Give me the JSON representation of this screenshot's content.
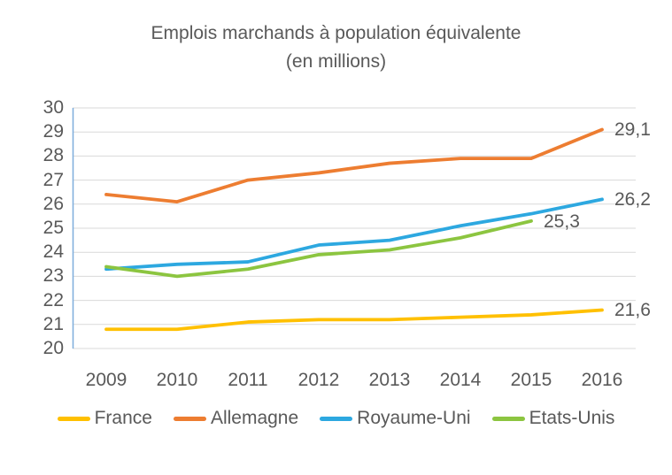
{
  "title": {
    "line1": "Emplois marchands à population équivalente",
    "line2": "(en millions)"
  },
  "chart_data": {
    "type": "line",
    "title": "Emplois marchands à population équivalente (en millions)",
    "categories": [
      "2009",
      "2010",
      "2011",
      "2012",
      "2013",
      "2014",
      "2015",
      "2016"
    ],
    "y_ticks": [
      30,
      29,
      28,
      27,
      26,
      25,
      24,
      23,
      22,
      21,
      20
    ],
    "ylim": [
      20,
      30
    ],
    "xlabel": "",
    "ylabel": "",
    "grid": "horizontal",
    "legend_position": "bottom",
    "colors": {
      "text": "#595959",
      "grid": "#D9D9D9",
      "axis_line": "#7EADDC"
    },
    "series": [
      {
        "name": "France",
        "color": "#FFC000",
        "values": [
          20.8,
          20.8,
          21.1,
          21.2,
          21.2,
          21.3,
          21.4,
          21.6
        ],
        "end_label": "21,6"
      },
      {
        "name": "Allemagne",
        "color": "#ED7D31",
        "values": [
          26.4,
          26.1,
          27.0,
          27.3,
          27.7,
          27.9,
          27.9,
          29.1
        ],
        "end_label": "29,1"
      },
      {
        "name": "Royaume-Uni",
        "color": "#2DA8E0",
        "values": [
          23.3,
          23.5,
          23.6,
          24.3,
          24.5,
          25.1,
          25.6,
          26.2
        ],
        "end_label": "26,2"
      },
      {
        "name": "Etats-Unis",
        "color": "#8CC540",
        "values": [
          23.4,
          23.0,
          23.3,
          23.9,
          24.1,
          24.6,
          25.3
        ],
        "end_label": "25,3"
      }
    ]
  }
}
